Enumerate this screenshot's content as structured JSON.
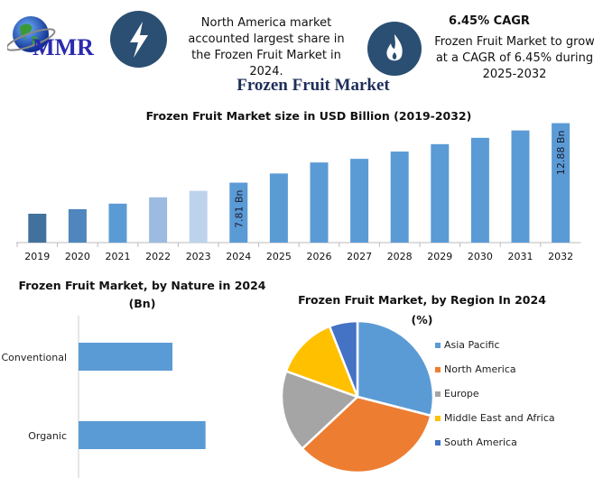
{
  "header": {
    "logo_text": "MMR",
    "highlight1": {
      "icon": "lightning-bolt-icon",
      "text": "North America market accounted largest share in the Frozen Fruit Market in 2024."
    },
    "highlight2": {
      "icon": "flame-icon",
      "title": "6.45% CAGR",
      "text": "Frozen Fruit Market to grow at a CAGR of 6.45% during 2025-2032"
    },
    "main_title": "Frozen Fruit Market"
  },
  "colors": {
    "icon_bg": "#2b4f72",
    "bar": "#5b9bd5",
    "title": "#1f2f5a"
  },
  "chart_data": [
    {
      "type": "bar",
      "title": "Frozen Fruit Market size in USD Billion (2019-2032)",
      "categories": [
        "2019",
        "2020",
        "2021",
        "2022",
        "2023",
        "2024",
        "2025",
        "2026",
        "2027",
        "2028",
        "2029",
        "2030",
        "2031",
        "2032"
      ],
      "values": [
        5.16,
        5.55,
        6.02,
        6.56,
        7.11,
        7.81,
        8.59,
        9.53,
        9.84,
        10.46,
        11.09,
        11.63,
        12.26,
        12.88
      ],
      "colors": [
        "#41719c",
        "#4e86bd",
        "#5b9bd5",
        "#9dbbe0",
        "#bdd3ec",
        "#5b9bd5",
        "#5b9bd5",
        "#5b9bd5",
        "#5b9bd5",
        "#5b9bd5",
        "#5b9bd5",
        "#5b9bd5",
        "#5b9bd5",
        "#5b9bd5"
      ],
      "data_labels": {
        "2024": "7.81 Bn",
        "2032": "12.88 Bn"
      },
      "ylim": [
        2.7,
        13
      ],
      "grid": false
    },
    {
      "type": "bar",
      "orientation": "horizontal",
      "title": "Frozen Fruit Market, by Nature in 2024 (Bn)",
      "categories": [
        "Conventional",
        "Organic"
      ],
      "values": [
        3.32,
        4.49
      ],
      "xlim": [
        0,
        7.5
      ],
      "grid": false
    },
    {
      "type": "pie",
      "title": "Frozen Fruit Market, by Region In 2024 (%)",
      "categories": [
        "Asia Pacific",
        "North America",
        "Europe",
        "Middle East and Africa",
        "South America"
      ],
      "values": [
        29,
        34,
        17.5,
        13.5,
        6
      ],
      "colors": [
        "#5b9bd5",
        "#ed7d31",
        "#a5a5a5",
        "#ffc000",
        "#4472c4"
      ],
      "legend": "right"
    }
  ]
}
